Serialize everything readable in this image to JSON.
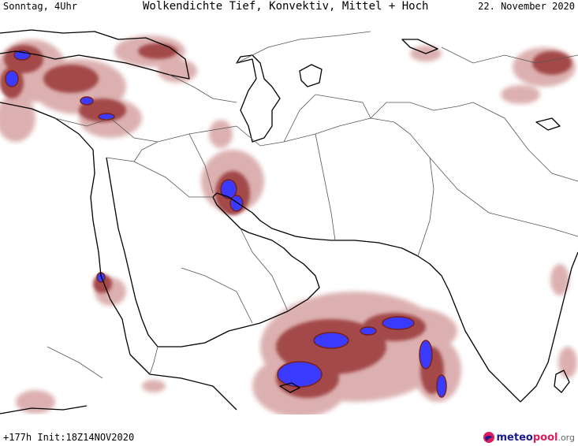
{
  "header": {
    "day_time": "Sonntag, 4Uhr",
    "title": "Wolkendichte  Tief, Konvektiv, Mittel + Hoch",
    "date": "22. November 2020"
  },
  "footer": {
    "run_info": "+177h Init:18Z14NOV2020",
    "logo_part1": "meteo",
    "logo_part2": "pool",
    "logo_part3": ".org"
  },
  "colors": {
    "light_cloud": "#d9a8a8",
    "medium_cloud": "#a34a4a",
    "dense_cloud": "#7a1f1f",
    "convective": "#3b3bff",
    "coastline": "#000000",
    "border": "#555555",
    "logo_dark": "#1a1a8c",
    "logo_accent": "#d91c5c"
  }
}
